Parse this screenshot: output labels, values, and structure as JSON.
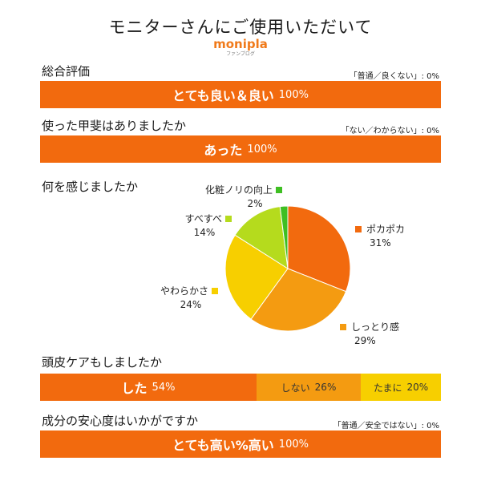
{
  "header": {
    "title": "モニターさんにご使用いただいて",
    "brand": "monipla",
    "brand_sub": "ファンブログ"
  },
  "colors": {
    "orange_dark": "#f26a0e",
    "orange_mid": "#f49b11",
    "yellow": "#f7cf00",
    "lime": "#b5db1d",
    "green": "#3fbf23"
  },
  "chart_data": [
    {
      "type": "bar",
      "title": "総合評価",
      "note": "「普通／良くない」: 0%",
      "segments": [
        {
          "label": "とても良い＆良い",
          "value": 100,
          "value_label": "100%",
          "color": "#f26a0e"
        }
      ]
    },
    {
      "type": "bar",
      "title": "使った甲斐はありましたか",
      "note": "「ない／わからない」: 0%",
      "segments": [
        {
          "label": "あった",
          "value": 100,
          "value_label": "100%",
          "color": "#f26a0e"
        }
      ]
    },
    {
      "type": "pie",
      "title": "何を感じましたか",
      "slices": [
        {
          "label": "ポカポカ",
          "value": 31,
          "value_label": "31%",
          "color": "#f26a0e"
        },
        {
          "label": "しっとり感",
          "value": 29,
          "value_label": "29%",
          "color": "#f49b11"
        },
        {
          "label": "やわらかさ",
          "value": 24,
          "value_label": "24%",
          "color": "#f7cf00"
        },
        {
          "label": "すべすべ",
          "value": 14,
          "value_label": "14%",
          "color": "#b5db1d"
        },
        {
          "label": "化粧ノリの向上",
          "value": 2,
          "value_label": "2%",
          "color": "#3fbf23"
        }
      ]
    },
    {
      "type": "bar",
      "title": "頭皮ケアもしましたか",
      "segments": [
        {
          "label": "した",
          "value": 54,
          "value_label": "54%",
          "color": "#f26a0e"
        },
        {
          "label": "しない",
          "value": 26,
          "value_label": "26%",
          "color": "#f49b11"
        },
        {
          "label": "たまに",
          "value": 20,
          "value_label": "20%",
          "color": "#f7cf00"
        }
      ]
    },
    {
      "type": "bar",
      "title": "成分の安心度はいかがですか",
      "note": "「普通／安全ではない」: 0%",
      "segments": [
        {
          "label": "とても高い%高い",
          "value": 100,
          "value_label": "100%",
          "color": "#f26a0e"
        }
      ]
    }
  ]
}
